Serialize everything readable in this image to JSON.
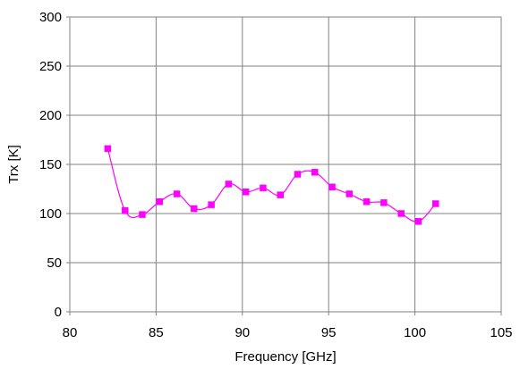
{
  "chart_data": {
    "type": "line",
    "title": "",
    "xlabel": "Frequency [GHz]",
    "ylabel": "Trx [K]",
    "xlim": [
      80,
      105
    ],
    "ylim": [
      0,
      300
    ],
    "xticks": [
      "80",
      "85",
      "90",
      "95",
      "100",
      "105"
    ],
    "yticks": [
      "0",
      "50",
      "100",
      "150",
      "200",
      "250",
      "300"
    ],
    "grid": true,
    "legend": "none",
    "series": [
      {
        "color": "#ff00ff",
        "marker": "square",
        "smooth": true,
        "x": [
          82.2,
          83.2,
          84.2,
          85.2,
          86.2,
          87.2,
          88.2,
          89.2,
          90.2,
          91.2,
          92.2,
          93.2,
          94.2,
          95.2,
          96.2,
          97.2,
          98.2,
          99.2,
          100.2,
          101.2
        ],
        "y": [
          166,
          103,
          99,
          112,
          120,
          105,
          109,
          130,
          122,
          126,
          119,
          140,
          142,
          127,
          120,
          112,
          111,
          100,
          92,
          110
        ]
      }
    ]
  }
}
